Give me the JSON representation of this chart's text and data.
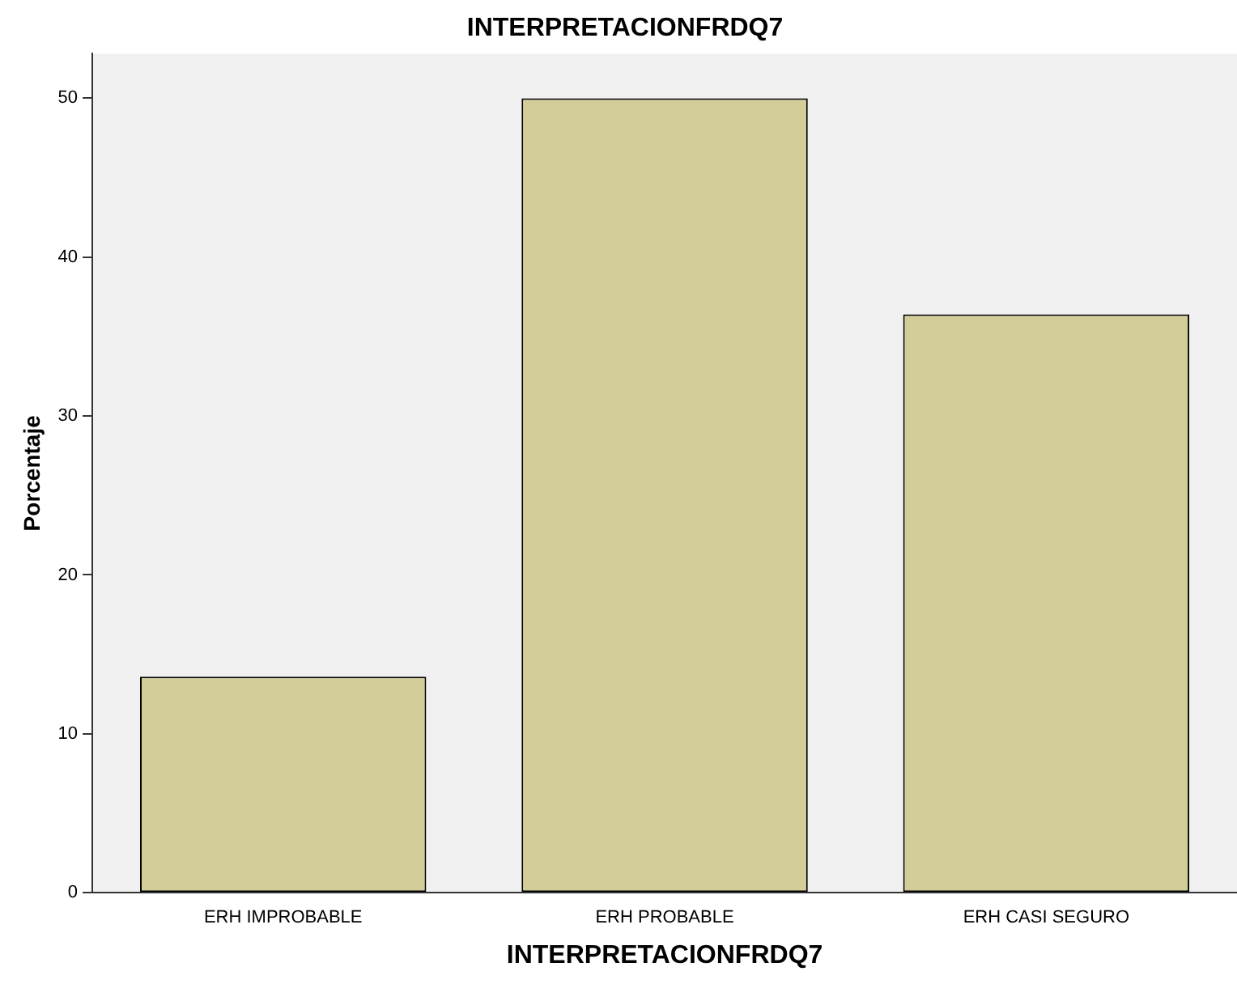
{
  "chart_data": {
    "type": "bar",
    "title": "INTERPRETACIONFRDQ7",
    "xlabel": "INTERPRETACIONFRDQ7",
    "ylabel": "Porcentaje",
    "categories": [
      "ERH IMPROBABLE",
      "ERH PROBABLE",
      "ERH CASI SEGURO"
    ],
    "values": [
      13.6,
      50,
      36.4
    ],
    "color": "#d3ce97",
    "ylim": [
      0,
      52.8
    ],
    "yticks": [
      0,
      10,
      20,
      30,
      40,
      50
    ],
    "grid": false,
    "legend": false
  }
}
